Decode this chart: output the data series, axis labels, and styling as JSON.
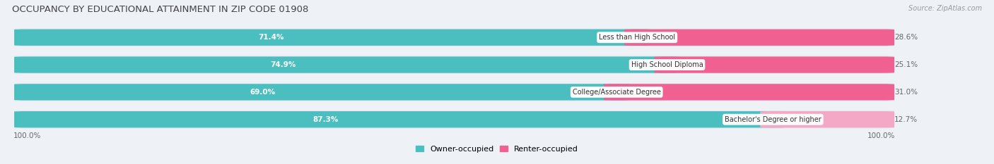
{
  "title": "OCCUPANCY BY EDUCATIONAL ATTAINMENT IN ZIP CODE 01908",
  "source": "Source: ZipAtlas.com",
  "categories": [
    "Less than High School",
    "High School Diploma",
    "College/Associate Degree",
    "Bachelor's Degree or higher"
  ],
  "owner_pct": [
    71.4,
    74.9,
    69.0,
    87.3
  ],
  "renter_pct": [
    28.6,
    25.1,
    31.0,
    12.7
  ],
  "owner_color": "#4bbfbf",
  "renter_color": "#f06090",
  "renter_light_color": "#f5a8c5",
  "bg_color": "#eef2f7",
  "bar_bg_color": "#dde5ef",
  "bar_height": 0.62,
  "title_fontsize": 9.5,
  "label_fontsize": 7.5,
  "tick_fontsize": 7.5,
  "source_fontsize": 7,
  "legend_fontsize": 8,
  "axis_label_left": "100.0%",
  "axis_label_right": "100.0%"
}
